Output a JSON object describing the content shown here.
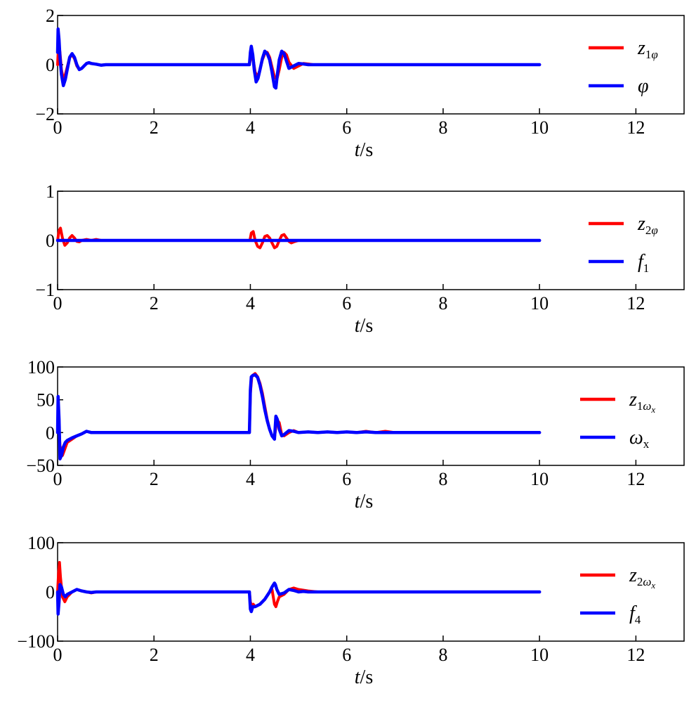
{
  "chart_data": [
    {
      "type": "line",
      "xlim": [
        0,
        13
      ],
      "ylim": [
        -2,
        2
      ],
      "xticks": [
        "0",
        "2",
        "4",
        "6",
        "8",
        "10",
        "12"
      ],
      "yticks": [
        "−2",
        "0",
        "2"
      ],
      "yticks_values": [
        -2,
        0,
        2
      ],
      "xticks_values": [
        0,
        2,
        4,
        6,
        8,
        10,
        12
      ],
      "xlabel_italic": "t",
      "xlabel_rest": "/s",
      "grid": false,
      "legend_position": "right",
      "series": [
        {
          "name_main": "z",
          "name_sub": "1φ",
          "name_sub2": "",
          "color": "#ff0000",
          "x": [
            0,
            0.02,
            0.05,
            0.08,
            0.12,
            0.16,
            0.2,
            0.25,
            0.3,
            0.35,
            0.4,
            0.45,
            0.5,
            0.55,
            0.6,
            0.65,
            0.7,
            0.8,
            0.9,
            1.0,
            1.1,
            2,
            3,
            3.98,
            4.0,
            4.03,
            4.06,
            4.1,
            4.15,
            4.2,
            4.25,
            4.3,
            4.35,
            4.4,
            4.45,
            4.5,
            4.55,
            4.6,
            4.65,
            4.7,
            4.75,
            4.8,
            4.9,
            5.0,
            5.1,
            5.2,
            5.3,
            5.4,
            6,
            8,
            10
          ],
          "y": [
            0,
            0.9,
            0.5,
            -0.2,
            -0.6,
            -0.4,
            -0.1,
            0.3,
            0.4,
            0.25,
            -0.05,
            -0.2,
            -0.15,
            -0.05,
            0.05,
            0.08,
            0.05,
            0.02,
            -0.02,
            0,
            0,
            0,
            0,
            0,
            0.2,
            0.5,
            0.2,
            -0.3,
            -0.5,
            -0.2,
            0.2,
            0.45,
            0.5,
            0.3,
            -0.1,
            -0.5,
            -0.6,
            -0.2,
            0.3,
            0.5,
            0.4,
            0.1,
            -0.15,
            -0.05,
            0.05,
            0.03,
            0,
            0,
            0,
            0,
            0
          ]
        },
        {
          "name_main": "φ",
          "name_sub": "",
          "name_sub2": "",
          "color": "#0000ff",
          "x": [
            0,
            0.01,
            0.03,
            0.05,
            0.08,
            0.12,
            0.16,
            0.2,
            0.25,
            0.3,
            0.35,
            0.4,
            0.45,
            0.5,
            0.55,
            0.6,
            0.65,
            0.7,
            0.8,
            0.9,
            1.0,
            1.1,
            2,
            3,
            3.98,
            4.0,
            4.02,
            4.05,
            4.08,
            4.12,
            4.16,
            4.2,
            4.25,
            4.3,
            4.35,
            4.4,
            4.45,
            4.5,
            4.53,
            4.56,
            4.6,
            4.65,
            4.7,
            4.75,
            4.8,
            4.9,
            5.0,
            5.1,
            5.2,
            5.3,
            5.4,
            6,
            8,
            10
          ],
          "y": [
            0.5,
            1.45,
            1.0,
            0.3,
            -0.4,
            -0.85,
            -0.6,
            -0.2,
            0.3,
            0.45,
            0.3,
            0.0,
            -0.2,
            -0.15,
            -0.05,
            0.05,
            0.08,
            0.05,
            0.02,
            -0.02,
            0,
            0,
            0,
            0,
            0,
            0.5,
            0.75,
            0.4,
            -0.2,
            -0.7,
            -0.55,
            -0.2,
            0.25,
            0.55,
            0.45,
            0.2,
            -0.3,
            -0.9,
            -0.95,
            -0.4,
            0.2,
            0.55,
            0.45,
            0.15,
            -0.15,
            -0.05,
            0.05,
            0.03,
            0,
            0,
            0,
            0,
            0,
            0
          ]
        }
      ]
    },
    {
      "type": "line",
      "xlim": [
        0,
        13
      ],
      "ylim": [
        -1,
        1
      ],
      "xticks": [
        "0",
        "2",
        "4",
        "6",
        "8",
        "10",
        "12"
      ],
      "yticks": [
        "−1",
        "0",
        "1"
      ],
      "yticks_values": [
        -1,
        0,
        1
      ],
      "xticks_values": [
        0,
        2,
        4,
        6,
        8,
        10,
        12
      ],
      "xlabel_italic": "t",
      "xlabel_rest": "/s",
      "grid": false,
      "legend_position": "right",
      "series": [
        {
          "name_main": "z",
          "name_sub": "2φ",
          "name_sub2": "",
          "color": "#ff0000",
          "x": [
            0,
            0.03,
            0.06,
            0.1,
            0.15,
            0.2,
            0.25,
            0.3,
            0.35,
            0.4,
            0.45,
            0.5,
            0.6,
            0.7,
            0.8,
            0.9,
            2,
            3,
            3.99,
            4.02,
            4.06,
            4.1,
            4.15,
            4.2,
            4.25,
            4.3,
            4.35,
            4.4,
            4.45,
            4.5,
            4.55,
            4.6,
            4.65,
            4.7,
            4.75,
            4.8,
            4.85,
            4.9,
            5.0,
            5.1,
            6,
            8,
            10
          ],
          "y": [
            0,
            0.2,
            0.25,
            0.05,
            -0.1,
            -0.05,
            0.05,
            0.1,
            0.05,
            -0.02,
            -0.03,
            0,
            0.02,
            0,
            0.02,
            0,
            0,
            0,
            0,
            0.15,
            0.18,
            0.0,
            -0.12,
            -0.15,
            -0.05,
            0.08,
            0.1,
            0.05,
            -0.05,
            -0.15,
            -0.12,
            0.0,
            0.1,
            0.12,
            0.05,
            -0.02,
            -0.05,
            -0.03,
            0,
            0,
            0,
            0,
            0
          ]
        },
        {
          "name_main": "f",
          "name_sub": "1",
          "name_sub2": "",
          "color": "#0000ff",
          "x": [
            0,
            2,
            4,
            6,
            8,
            10
          ],
          "y": [
            0,
            0,
            0,
            0,
            0,
            0
          ]
        }
      ]
    },
    {
      "type": "line",
      "xlim": [
        0,
        13
      ],
      "ylim": [
        -50,
        100
      ],
      "xticks": [
        "0",
        "2",
        "4",
        "6",
        "8",
        "10",
        "12"
      ],
      "yticks": [
        "−50",
        "0",
        "50",
        "100"
      ],
      "yticks_values": [
        -50,
        0,
        50,
        100
      ],
      "xticks_values": [
        0,
        2,
        4,
        6,
        8,
        10,
        12
      ],
      "xlabel_italic": "t",
      "xlabel_rest": "/s",
      "grid": false,
      "legend_position": "right",
      "series": [
        {
          "name_main": "z",
          "name_sub": "1ω",
          "name_sub2": "x",
          "color": "#ff0000",
          "x": [
            0,
            0.02,
            0.05,
            0.1,
            0.15,
            0.2,
            0.3,
            0.4,
            0.5,
            0.6,
            0.7,
            0.8,
            0.9,
            2,
            3,
            3.98,
            4.0,
            4.03,
            4.06,
            4.1,
            4.15,
            4.2,
            4.25,
            4.3,
            4.35,
            4.4,
            4.45,
            4.5,
            4.55,
            4.6,
            4.65,
            4.7,
            4.8,
            4.9,
            5.0,
            5.2,
            5.4,
            5.6,
            5.8,
            6.0,
            6.2,
            6.4,
            6.6,
            6.8,
            7.0,
            8,
            10
          ],
          "y": [
            0,
            20,
            -20,
            -35,
            -25,
            -15,
            -10,
            -5,
            -2,
            2,
            0,
            0,
            0,
            0,
            0,
            0,
            60,
            85,
            88,
            90,
            85,
            75,
            60,
            40,
            20,
            5,
            -5,
            -8,
            20,
            15,
            -3,
            -5,
            0,
            3,
            0,
            1,
            0,
            1,
            0,
            1,
            0,
            2,
            0,
            2,
            0,
            0,
            0
          ]
        },
        {
          "name_main": "ω",
          "name_sub": "x",
          "name_sub2": "",
          "color": "#0000ff",
          "x": [
            0,
            0.01,
            0.03,
            0.05,
            0.08,
            0.12,
            0.16,
            0.2,
            0.3,
            0.4,
            0.5,
            0.6,
            0.7,
            0.8,
            0.9,
            2,
            3,
            3.98,
            4.0,
            4.02,
            4.05,
            4.1,
            4.15,
            4.2,
            4.25,
            4.3,
            4.35,
            4.4,
            4.45,
            4.5,
            4.53,
            4.56,
            4.6,
            4.65,
            4.7,
            4.8,
            4.9,
            5.0,
            5.2,
            5.4,
            5.6,
            5.8,
            6.0,
            6.2,
            6.4,
            6.6,
            7.0,
            8,
            10
          ],
          "y": [
            0,
            55,
            20,
            -40,
            -35,
            -22,
            -15,
            -12,
            -8,
            -5,
            -2,
            2,
            0,
            0,
            0,
            0,
            0,
            0,
            65,
            85,
            87,
            88,
            84,
            72,
            55,
            35,
            18,
            5,
            -5,
            -10,
            25,
            20,
            5,
            -5,
            -3,
            3,
            2,
            0,
            1,
            0,
            1,
            0,
            1,
            0,
            1,
            0,
            0,
            0,
            0
          ]
        }
      ]
    },
    {
      "type": "line",
      "xlim": [
        0,
        13
      ],
      "ylim": [
        -100,
        100
      ],
      "xticks": [
        "0",
        "2",
        "4",
        "6",
        "8",
        "10",
        "12"
      ],
      "yticks": [
        "−100",
        "0",
        "100"
      ],
      "yticks_values": [
        -100,
        0,
        100
      ],
      "xticks_values": [
        0,
        2,
        4,
        6,
        8,
        10,
        12
      ],
      "xlabel_italic": "t",
      "xlabel_rest": "/s",
      "grid": false,
      "legend_position": "right",
      "series": [
        {
          "name_main": "z",
          "name_sub": "2ω",
          "name_sub2": "x",
          "color": "#ff0000",
          "x": [
            0,
            0.02,
            0.04,
            0.06,
            0.1,
            0.15,
            0.2,
            0.3,
            0.4,
            0.5,
            0.6,
            0.7,
            0.8,
            2,
            3,
            3.98,
            4.0,
            4.03,
            4.06,
            4.1,
            4.2,
            4.3,
            4.4,
            4.45,
            4.5,
            4.53,
            4.56,
            4.6,
            4.7,
            4.8,
            4.9,
            5.0,
            5.2,
            5.4,
            6,
            8,
            10
          ],
          "y": [
            0,
            40,
            60,
            30,
            -10,
            -20,
            -10,
            0,
            5,
            2,
            0,
            -2,
            0,
            0,
            0,
            0,
            -20,
            -30,
            -25,
            -30,
            -25,
            -15,
            0,
            5,
            -25,
            -30,
            -20,
            -10,
            -5,
            5,
            8,
            5,
            2,
            0,
            0,
            0,
            0
          ]
        },
        {
          "name_main": "f",
          "name_sub": "4",
          "name_sub2": "",
          "color": "#0000ff",
          "x": [
            0,
            0.01,
            0.03,
            0.05,
            0.08,
            0.12,
            0.16,
            0.2,
            0.3,
            0.4,
            0.5,
            0.6,
            0.7,
            0.8,
            2,
            3,
            3.98,
            4.0,
            4.02,
            4.05,
            4.1,
            4.2,
            4.3,
            4.4,
            4.45,
            4.5,
            4.52,
            4.55,
            4.6,
            4.7,
            4.8,
            4.9,
            5.0,
            5.1,
            5.2,
            5.3,
            5.4,
            6,
            8,
            10
          ],
          "y": [
            0,
            -45,
            -20,
            15,
            10,
            -5,
            -10,
            -5,
            0,
            5,
            2,
            0,
            -1,
            0,
            0,
            0,
            0,
            -35,
            -40,
            -30,
            -30,
            -25,
            -15,
            0,
            10,
            18,
            15,
            5,
            -5,
            -2,
            5,
            3,
            0,
            1,
            0,
            0,
            0,
            0,
            0,
            0
          ]
        }
      ]
    }
  ]
}
